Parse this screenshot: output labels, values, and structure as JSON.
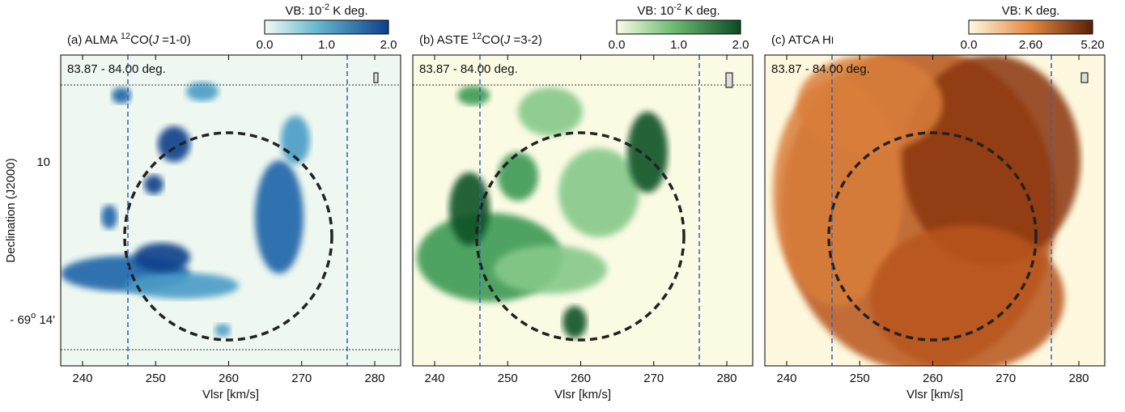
{
  "y_axis_label": "Declination (J2000)",
  "y_ticks": [
    {
      "text": "10"
    },
    {
      "deg": "- 69",
      "sup": "o",
      "min": " 14'"
    }
  ],
  "panels": [
    {
      "title": {
        "prefix": "(a) ALMA ",
        "sup": "12",
        "mid": "CO(",
        "italic": "J",
        "suffix": " =1-0)"
      },
      "colorbar_label": {
        "prefix": "VB: 10",
        "sup": "-2",
        "suffix": " K deg."
      },
      "colorbar_ticks": [
        "0.0",
        "1.0",
        "2.0"
      ],
      "range_label": "83.87 -  84.00 deg.",
      "x_ticks": [
        "240",
        "250",
        "260",
        "270",
        "280"
      ],
      "x_label": "Vlsr [km/s]"
    },
    {
      "title": {
        "prefix": "(b) ASTE ",
        "sup": "12",
        "mid": "CO(",
        "italic": "J",
        "suffix": " =3-2)"
      },
      "colorbar_label": {
        "prefix": "VB: 10",
        "sup": "-2",
        "suffix": " K deg."
      },
      "colorbar_ticks": [
        "0.0",
        "1.0",
        "2.0"
      ],
      "range_label": "83.87 -  84.00 deg.",
      "x_ticks": [
        "240",
        "250",
        "260",
        "270",
        "280"
      ],
      "x_label": "Vlsr [km/s]"
    },
    {
      "title": {
        "prefix": "(c) ATCA H",
        "small": "I"
      },
      "colorbar_label": {
        "prefix": "VB: K deg."
      },
      "colorbar_ticks": [
        "0.0",
        "2.60",
        "5.20"
      ],
      "range_label": "83.87 -  84.00 deg.",
      "x_ticks": [
        "240",
        "250",
        "260",
        "270",
        "280"
      ],
      "x_label": "Vlsr [km/s]"
    }
  ]
}
